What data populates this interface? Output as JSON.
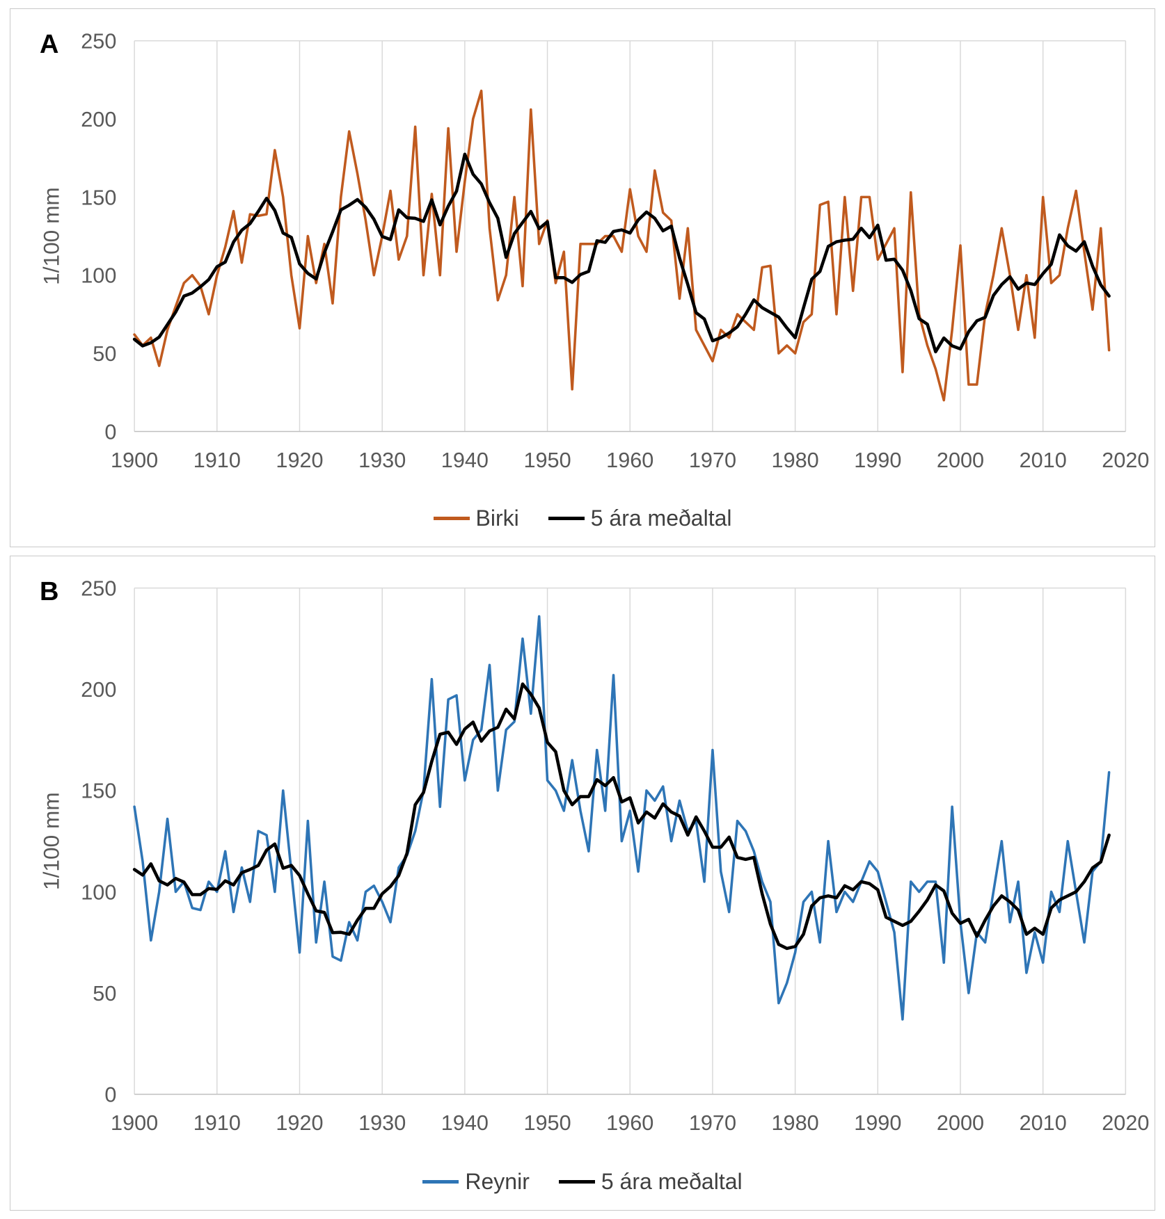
{
  "chart_data": [
    {
      "id": "A",
      "type": "line",
      "panel_label": "A",
      "ylabel": "1/100 mm",
      "ylim": [
        0,
        250
      ],
      "yticks": [
        0,
        50,
        100,
        150,
        200,
        250
      ],
      "xlim": [
        1900,
        2020
      ],
      "xticks": [
        1900,
        1910,
        1920,
        1930,
        1940,
        1950,
        1960,
        1970,
        1980,
        1990,
        2000,
        2010,
        2020
      ],
      "start_year": 1900,
      "grid": "vertical-only",
      "legend_position": "bottom-center",
      "series": [
        {
          "name": "Birki",
          "color": "#C05A1E",
          "values": [
            62,
            55,
            60,
            42,
            65,
            80,
            95,
            100,
            93,
            75,
            100,
            118,
            141,
            108,
            139,
            138,
            139,
            180,
            150,
            100,
            66,
            125,
            95,
            120,
            82,
            150,
            192,
            165,
            135,
            100,
            125,
            154,
            110,
            125,
            195,
            100,
            152,
            100,
            194,
            115,
            160,
            200,
            218,
            130,
            84,
            100,
            150,
            93,
            206,
            120,
            135,
            95,
            115,
            27,
            120,
            120,
            120,
            125,
            125,
            115,
            155,
            125,
            115,
            167,
            140,
            135,
            85,
            130,
            65,
            55,
            45,
            65,
            60,
            75,
            70,
            65,
            105,
            106,
            50,
            55,
            50,
            70,
            75,
            145,
            147,
            75,
            150,
            90,
            150,
            150,
            110,
            120,
            130,
            38,
            153,
            75,
            55,
            40,
            20,
            65,
            119,
            30,
            30,
            75,
            100,
            130,
            100,
            65,
            100,
            60,
            150,
            95,
            100,
            130,
            154,
            115,
            78,
            130,
            52
          ]
        },
        {
          "name": "5 ára meðaltal",
          "color": "#000000",
          "derived_from": "Birki",
          "window": 5
        }
      ]
    },
    {
      "id": "B",
      "type": "line",
      "panel_label": "B",
      "ylabel": "1/100 mm",
      "ylim": [
        0,
        250
      ],
      "yticks": [
        0,
        50,
        100,
        150,
        200,
        250
      ],
      "xlim": [
        1900,
        2020
      ],
      "xticks": [
        1900,
        1910,
        1920,
        1930,
        1940,
        1950,
        1960,
        1970,
        1980,
        1990,
        2000,
        2010,
        2020
      ],
      "start_year": 1900,
      "grid": "vertical-only",
      "legend_position": "bottom-center",
      "series": [
        {
          "name": "Reynir",
          "color": "#2E75B6",
          "values": [
            142,
            115,
            76,
            100,
            136,
            100,
            105,
            92,
            91,
            105,
            100,
            120,
            90,
            112,
            95,
            130,
            128,
            100,
            150,
            110,
            70,
            135,
            75,
            105,
            68,
            66,
            85,
            76,
            100,
            103,
            95,
            85,
            112,
            118,
            130,
            150,
            205,
            142,
            195,
            197,
            155,
            175,
            180,
            212,
            150,
            180,
            184,
            225,
            188,
            236,
            155,
            150,
            140,
            165,
            140,
            120,
            170,
            140,
            207,
            125,
            140,
            110,
            150,
            145,
            152,
            125,
            145,
            130,
            135,
            105,
            170,
            110,
            90,
            135,
            130,
            120,
            105,
            95,
            45,
            55,
            70,
            95,
            100,
            75,
            125,
            90,
            100,
            95,
            105,
            115,
            110,
            95,
            80,
            37,
            105,
            100,
            105,
            105,
            65,
            142,
            85,
            50,
            80,
            75,
            100,
            125,
            85,
            105,
            60,
            80,
            65,
            100,
            90,
            125,
            100,
            75,
            110,
            115,
            159
          ]
        },
        {
          "name": "5 ára meðaltal",
          "color": "#000000",
          "derived_from": "Reynir",
          "window": 5
        }
      ]
    }
  ]
}
